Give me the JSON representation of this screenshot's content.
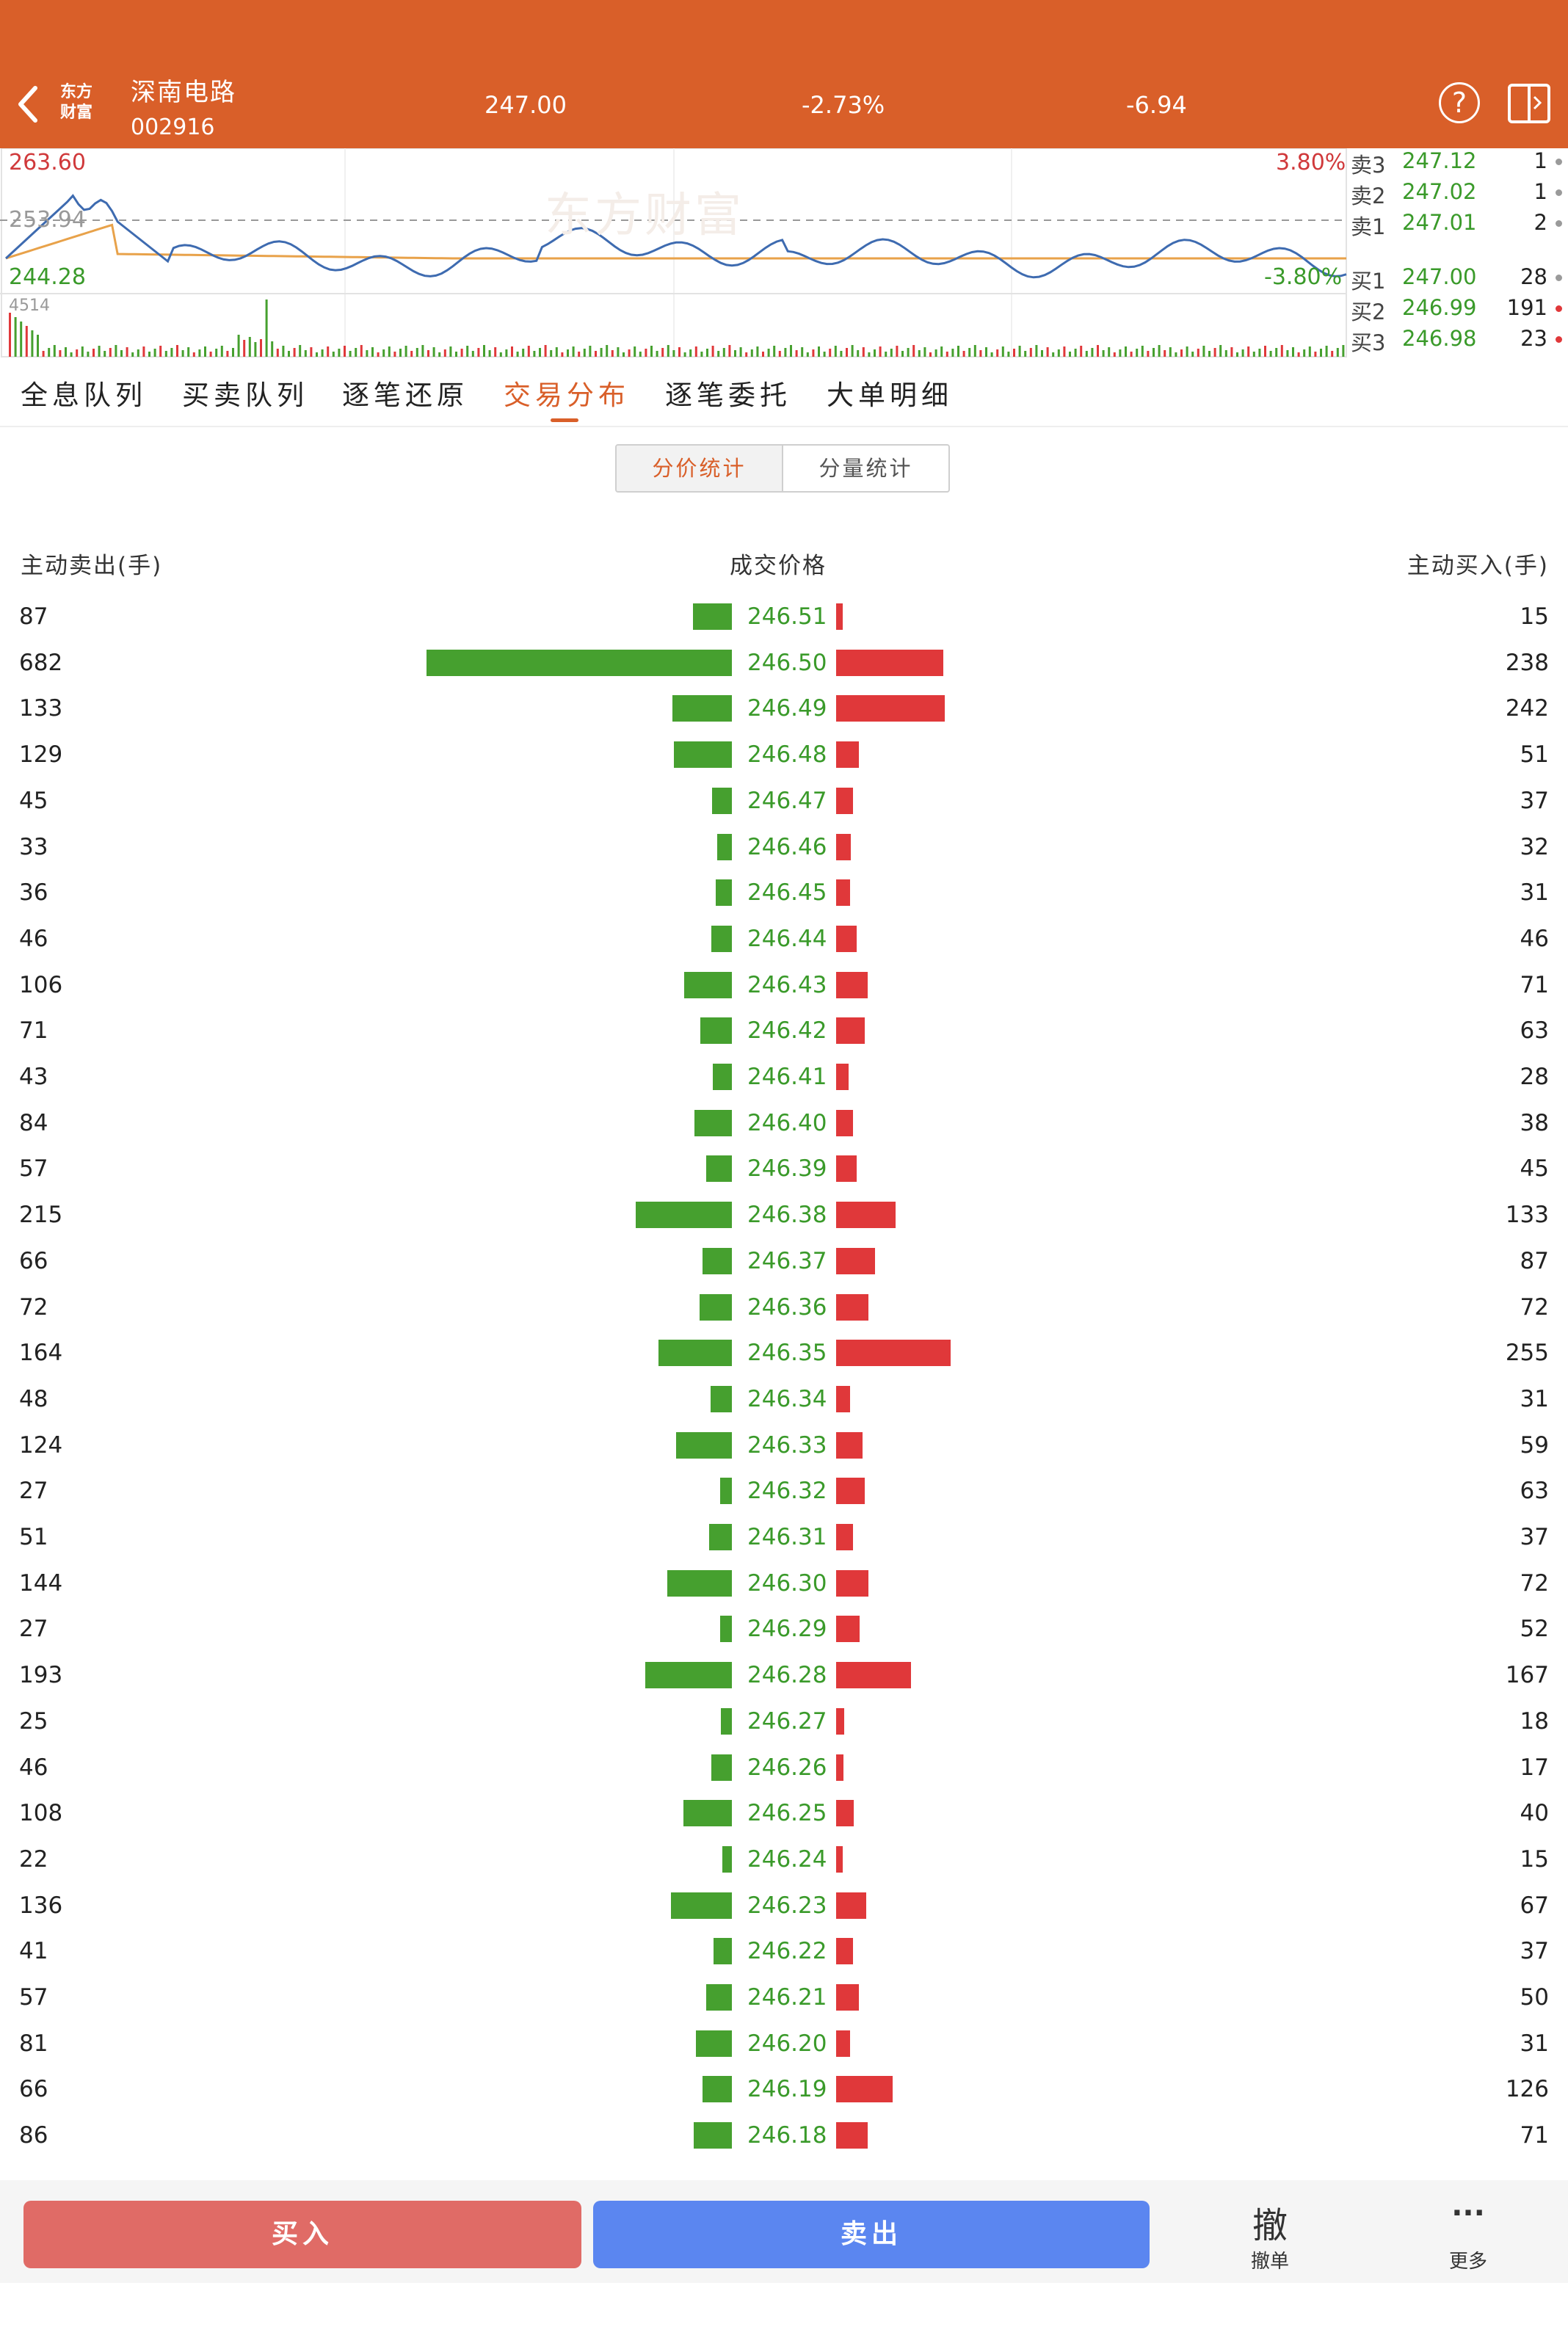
{
  "header": {
    "stock_name": "深南电路",
    "stock_code": "002916",
    "logo_text": "东方\n财富",
    "price": "247.00",
    "change_pct": "-2.73%",
    "change": "-6.94"
  },
  "mini_chart": {
    "high": "263.60",
    "prev_close": "253.94",
    "low": "244.28",
    "volume_max": "4514",
    "pct_up": "3.80%",
    "pct_down": "-3.80%",
    "watermark": "东方财富"
  },
  "order_book": {
    "asks": [
      {
        "label": "卖3",
        "price": "247.12",
        "vol": "1"
      },
      {
        "label": "卖2",
        "price": "247.02",
        "vol": "1"
      },
      {
        "label": "卖1",
        "price": "247.01",
        "vol": "2"
      }
    ],
    "bids": [
      {
        "label": "买1",
        "price": "247.00",
        "vol": "28"
      },
      {
        "label": "买2",
        "price": "246.99",
        "vol": "191"
      },
      {
        "label": "买3",
        "price": "246.98",
        "vol": "23"
      }
    ]
  },
  "tabs": [
    "全息队列",
    "买卖队列",
    "逐笔还原",
    "交易分布",
    "逐笔委托",
    "大单明细"
  ],
  "active_tab": 3,
  "segment": {
    "active": "分价统计",
    "idle": "分量统计"
  },
  "columns": {
    "sell": "主动卖出(手)",
    "price": "成交价格",
    "buy": "主动买入(手)"
  },
  "distribution": [
    {
      "price": "246.51",
      "sell": 87,
      "buy": 15
    },
    {
      "price": "246.50",
      "sell": 682,
      "buy": 238
    },
    {
      "price": "246.49",
      "sell": 133,
      "buy": 242
    },
    {
      "price": "246.48",
      "sell": 129,
      "buy": 51
    },
    {
      "price": "246.47",
      "sell": 45,
      "buy": 37
    },
    {
      "price": "246.46",
      "sell": 33,
      "buy": 32
    },
    {
      "price": "246.45",
      "sell": 36,
      "buy": 31
    },
    {
      "price": "246.44",
      "sell": 46,
      "buy": 46
    },
    {
      "price": "246.43",
      "sell": 106,
      "buy": 71
    },
    {
      "price": "246.42",
      "sell": 71,
      "buy": 63
    },
    {
      "price": "246.41",
      "sell": 43,
      "buy": 28
    },
    {
      "price": "246.40",
      "sell": 84,
      "buy": 38
    },
    {
      "price": "246.39",
      "sell": 57,
      "buy": 45
    },
    {
      "price": "246.38",
      "sell": 215,
      "buy": 133
    },
    {
      "price": "246.37",
      "sell": 66,
      "buy": 87
    },
    {
      "price": "246.36",
      "sell": 72,
      "buy": 72
    },
    {
      "price": "246.35",
      "sell": 164,
      "buy": 255
    },
    {
      "price": "246.34",
      "sell": 48,
      "buy": 31
    },
    {
      "price": "246.33",
      "sell": 124,
      "buy": 59
    },
    {
      "price": "246.32",
      "sell": 27,
      "buy": 63
    },
    {
      "price": "246.31",
      "sell": 51,
      "buy": 37
    },
    {
      "price": "246.30",
      "sell": 144,
      "buy": 72
    },
    {
      "price": "246.29",
      "sell": 27,
      "buy": 52
    },
    {
      "price": "246.28",
      "sell": 193,
      "buy": 167
    },
    {
      "price": "246.27",
      "sell": 25,
      "buy": 18
    },
    {
      "price": "246.26",
      "sell": 46,
      "buy": 17
    },
    {
      "price": "246.25",
      "sell": 108,
      "buy": 40
    },
    {
      "price": "246.24",
      "sell": 22,
      "buy": 15
    },
    {
      "price": "246.23",
      "sell": 136,
      "buy": 67
    },
    {
      "price": "246.22",
      "sell": 41,
      "buy": 37
    },
    {
      "price": "246.21",
      "sell": 57,
      "buy": 50
    },
    {
      "price": "246.20",
      "sell": 81,
      "buy": 31
    },
    {
      "price": "246.19",
      "sell": 66,
      "buy": 126
    },
    {
      "price": "246.18",
      "sell": 86,
      "buy": 71
    }
  ],
  "bottom_bar": {
    "buy": "买入",
    "sell": "卖出",
    "cancel_glyph": "撤",
    "cancel": "撤单",
    "more_glyph": "···",
    "more": "更多"
  },
  "colors": {
    "brand": "#d95f29",
    "up": "#e0383a",
    "down": "#46a02f",
    "buy_button": "#e06b66",
    "sell_button": "#5b86f0"
  },
  "icons": [
    "back-icon",
    "help-icon",
    "layout-switch-icon"
  ]
}
